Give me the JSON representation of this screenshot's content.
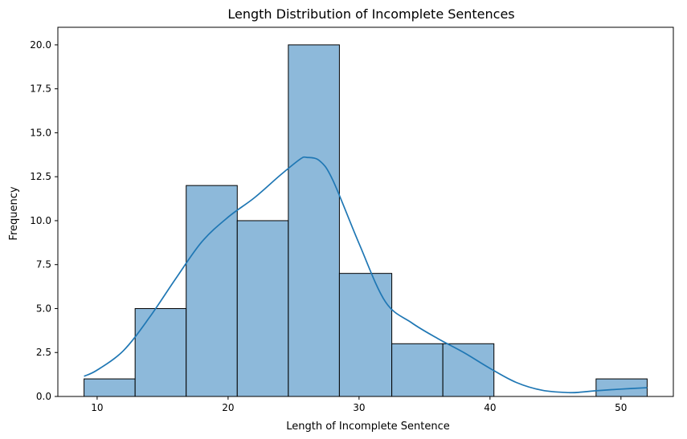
{
  "chart_data": {
    "type": "bar",
    "title": "Length Distribution of Incomplete Sentences",
    "xlabel": "Length of Incomplete Sentence",
    "ylabel": "Frequency",
    "bins": [
      {
        "start": 9.0,
        "end": 12.9,
        "count": 1
      },
      {
        "start": 12.9,
        "end": 16.8,
        "count": 5
      },
      {
        "start": 16.8,
        "end": 20.7,
        "count": 12
      },
      {
        "start": 20.7,
        "end": 24.6,
        "count": 10
      },
      {
        "start": 24.6,
        "end": 28.5,
        "count": 20
      },
      {
        "start": 28.5,
        "end": 32.5,
        "count": 7
      },
      {
        "start": 32.5,
        "end": 36.4,
        "count": 3
      },
      {
        "start": 36.4,
        "end": 40.3,
        "count": 3
      },
      {
        "start": 40.3,
        "end": 44.2,
        "count": 0
      },
      {
        "start": 44.2,
        "end": 48.1,
        "count": 0
      },
      {
        "start": 48.1,
        "end": 52.0,
        "count": 1
      }
    ],
    "kde": {
      "x": [
        9,
        10,
        12,
        14,
        16,
        18,
        20,
        22,
        24,
        25.5,
        26,
        27,
        28,
        30,
        32,
        34,
        36,
        38,
        40,
        42,
        44,
        46,
        47,
        48,
        50,
        52
      ],
      "y": [
        1.15,
        1.5,
        2.6,
        4.5,
        6.7,
        8.8,
        10.2,
        11.3,
        12.6,
        13.5,
        13.6,
        13.4,
        12.3,
        8.7,
        5.4,
        4.2,
        3.3,
        2.5,
        1.6,
        0.8,
        0.35,
        0.22,
        0.25,
        0.32,
        0.42,
        0.5
      ]
    },
    "xlim": [
      7,
      54
    ],
    "ylim": [
      0,
      21
    ],
    "xticks": [
      "10",
      "20",
      "30",
      "40",
      "50"
    ],
    "yticks": [
      "0.0",
      "2.5",
      "5.0",
      "7.5",
      "10.0",
      "12.5",
      "15.0",
      "17.5",
      "20.0"
    ],
    "bar_color": "#8db9da",
    "bar_edge_color": "#000000",
    "line_color": "#1f77b4",
    "grid": false,
    "legend": "none"
  }
}
